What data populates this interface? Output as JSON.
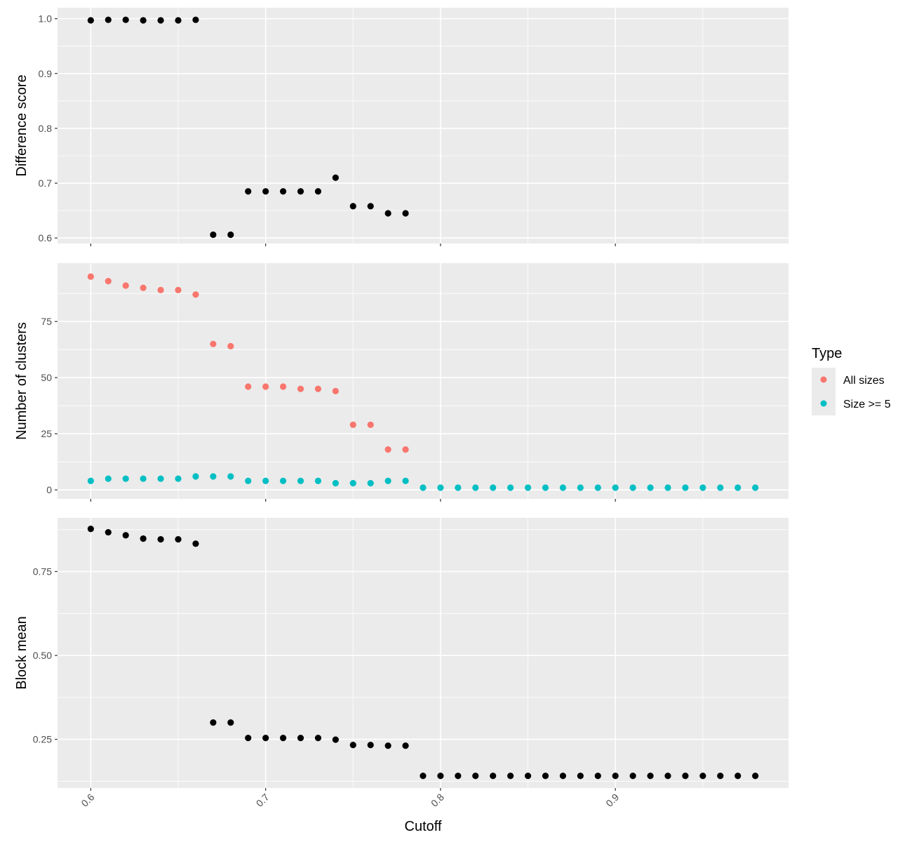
{
  "chart_data": {
    "type": "scatter",
    "xlabel": "Cutoff",
    "xlim": [
      0.581,
      0.999
    ],
    "x_ticks": [
      "0.6",
      "0.7",
      "0.8",
      "0.9"
    ],
    "x_tick_values": [
      0.6,
      0.7,
      0.8,
      0.9
    ],
    "legend": {
      "title": "Type",
      "position": "right",
      "entries": [
        "All sizes",
        "Size >= 5"
      ]
    },
    "panels": [
      {
        "ylabel": "Difference score",
        "ylim": [
          0.59,
          1.02
        ],
        "y_ticks": [
          "0.6",
          "0.7",
          "0.8",
          "0.9",
          "1.0"
        ],
        "y_tick_values": [
          0.6,
          0.7,
          0.8,
          0.9,
          1.0
        ],
        "series": [
          {
            "color": "#000000",
            "x": [
              0.6,
              0.61,
              0.62,
              0.63,
              0.64,
              0.65,
              0.66,
              0.67,
              0.68,
              0.69,
              0.7,
              0.71,
              0.72,
              0.73,
              0.74,
              0.75,
              0.76,
              0.77,
              0.78
            ],
            "y": [
              0.997,
              0.998,
              0.998,
              0.997,
              0.997,
              0.997,
              0.998,
              0.606,
              0.606,
              0.685,
              0.685,
              0.685,
              0.685,
              0.685,
              0.71,
              0.658,
              0.658,
              0.645,
              0.645
            ]
          }
        ]
      },
      {
        "ylabel": "Number of clusters",
        "ylim": [
          -4,
          101
        ],
        "y_ticks": [
          "0",
          "25",
          "50",
          "75"
        ],
        "y_tick_values": [
          0,
          25,
          50,
          75
        ],
        "series": [
          {
            "name": "All sizes",
            "color": "#F8766D",
            "x": [
              0.6,
              0.61,
              0.62,
              0.63,
              0.64,
              0.65,
              0.66,
              0.67,
              0.68,
              0.69,
              0.7,
              0.71,
              0.72,
              0.73,
              0.74,
              0.75,
              0.76,
              0.77,
              0.78
            ],
            "y": [
              95,
              93,
              91,
              90,
              89,
              89,
              87,
              65,
              64,
              46,
              46,
              46,
              45,
              45,
              44,
              29,
              29,
              18,
              18
            ]
          },
          {
            "name": "Size >= 5",
            "color": "#00BFC4",
            "x": [
              0.6,
              0.61,
              0.62,
              0.63,
              0.64,
              0.65,
              0.66,
              0.67,
              0.68,
              0.69,
              0.7,
              0.71,
              0.72,
              0.73,
              0.74,
              0.75,
              0.76,
              0.77,
              0.78,
              0.79,
              0.8,
              0.81,
              0.82,
              0.83,
              0.84,
              0.85,
              0.86,
              0.87,
              0.88,
              0.89,
              0.9,
              0.91,
              0.92,
              0.93,
              0.94,
              0.95,
              0.96,
              0.97,
              0.98
            ],
            "y": [
              4,
              5,
              5,
              5,
              5,
              5,
              6,
              6,
              6,
              4,
              4,
              4,
              4,
              4,
              3,
              3,
              3,
              4,
              4,
              1,
              1,
              1,
              1,
              1,
              1,
              1,
              1,
              1,
              1,
              1,
              1,
              1,
              1,
              1,
              1,
              1,
              1,
              1,
              1
            ]
          }
        ]
      },
      {
        "ylabel": "Block mean",
        "ylim": [
          0.105,
          0.91
        ],
        "y_ticks": [
          "0.25",
          "0.50",
          "0.75"
        ],
        "y_tick_values": [
          0.25,
          0.5,
          0.75
        ],
        "series": [
          {
            "color": "#000000",
            "x": [
              0.6,
              0.61,
              0.62,
              0.63,
              0.64,
              0.65,
              0.66,
              0.67,
              0.68,
              0.69,
              0.7,
              0.71,
              0.72,
              0.73,
              0.74,
              0.75,
              0.76,
              0.77,
              0.78,
              0.79,
              0.8,
              0.81,
              0.82,
              0.83,
              0.84,
              0.85,
              0.86,
              0.87,
              0.88,
              0.89,
              0.9,
              0.91,
              0.92,
              0.93,
              0.94,
              0.95,
              0.96,
              0.97,
              0.98
            ],
            "y": [
              0.877,
              0.867,
              0.858,
              0.848,
              0.846,
              0.846,
              0.833,
              0.3,
              0.3,
              0.254,
              0.254,
              0.254,
              0.254,
              0.254,
              0.249,
              0.233,
              0.233,
              0.231,
              0.231,
              0.141,
              0.141,
              0.141,
              0.141,
              0.141,
              0.141,
              0.141,
              0.141,
              0.141,
              0.141,
              0.141,
              0.141,
              0.141,
              0.141,
              0.141,
              0.141,
              0.141,
              0.141,
              0.141,
              0.141
            ]
          }
        ]
      }
    ]
  }
}
